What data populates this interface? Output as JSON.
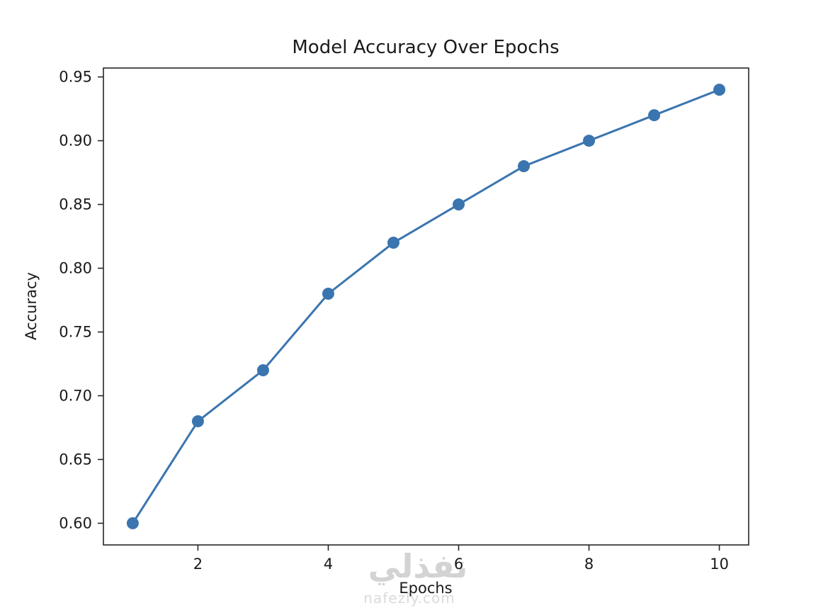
{
  "chart_data": {
    "type": "line",
    "title": "Model Accuracy Over Epochs",
    "xlabel": "Epochs",
    "ylabel": "Accuracy",
    "x": [
      1,
      2,
      3,
      4,
      5,
      6,
      7,
      8,
      9,
      10
    ],
    "series": [
      {
        "name": "accuracy",
        "values": [
          0.6,
          0.68,
          0.72,
          0.78,
          0.82,
          0.85,
          0.88,
          0.9,
          0.92,
          0.94
        ],
        "color": "#3b75af",
        "marker": "circle",
        "line_width": 3
      }
    ],
    "xlim": [
      0.55,
      10.45
    ],
    "ylim": [
      0.583,
      0.957
    ],
    "xticks": [
      2,
      4,
      6,
      8,
      10
    ],
    "yticks": [
      0.6,
      0.65,
      0.7,
      0.75,
      0.8,
      0.85,
      0.9,
      0.95
    ],
    "grid": false,
    "legend": "none",
    "axes_color": "#262626",
    "text_color": "#1a1a1a"
  },
  "watermark": {
    "text": "نفذلي",
    "subtext": "nafezly.com"
  }
}
